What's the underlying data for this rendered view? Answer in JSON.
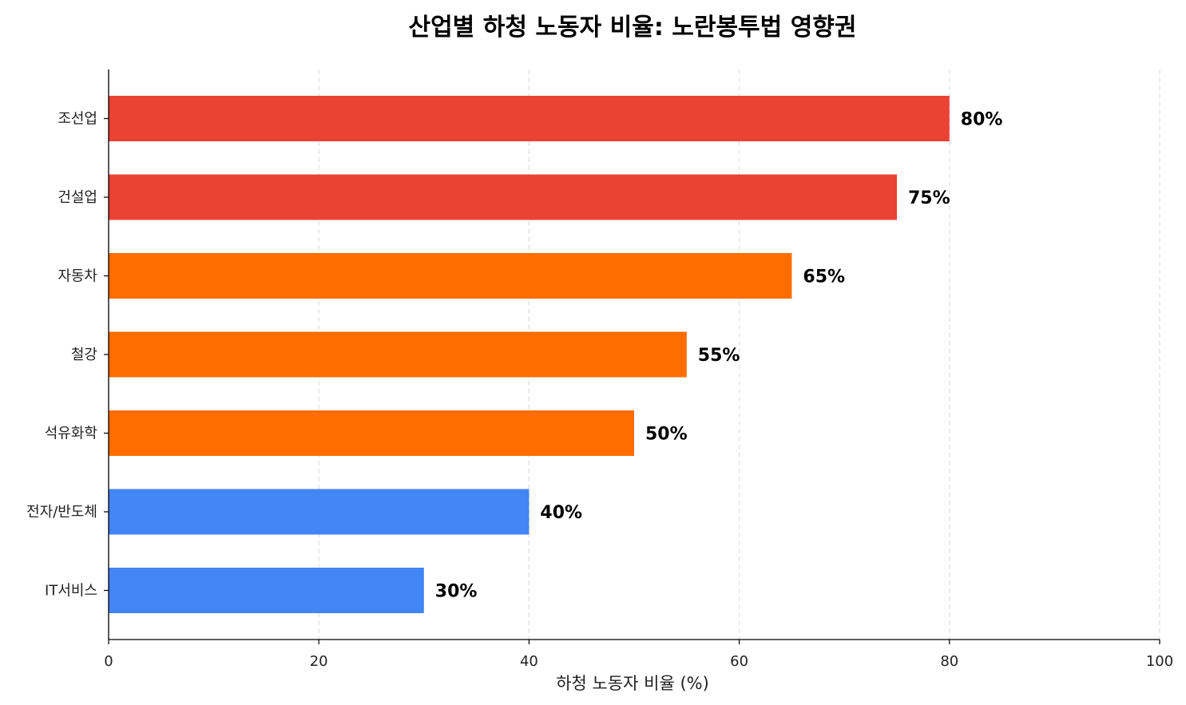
{
  "chart_data": {
    "type": "bar",
    "orientation": "horizontal",
    "title": "산업별 하청 노동자 비율: 노란봉투법 영향권",
    "xlabel": "하청 노동자 비율 (%)",
    "ylabel": "",
    "xlim": [
      0,
      100
    ],
    "x_ticks": [
      "0",
      "20",
      "40",
      "60",
      "80",
      "100"
    ],
    "x_tick_values": [
      0,
      20,
      40,
      60,
      80,
      100
    ],
    "grid": "vertical dashed",
    "categories": [
      "조선업",
      "건설업",
      "자동차",
      "철강",
      "석유화학",
      "전자/반도체",
      "IT서비스"
    ],
    "values": [
      80,
      75,
      65,
      55,
      50,
      40,
      30
    ],
    "data_labels": [
      "80%",
      "75%",
      "65%",
      "55%",
      "50%",
      "40%",
      "30%"
    ],
    "colors": [
      "#EA4335",
      "#EA4335",
      "#FF6D00",
      "#FF6D00",
      "#FF6D00",
      "#4285F4",
      "#4285F4"
    ]
  }
}
